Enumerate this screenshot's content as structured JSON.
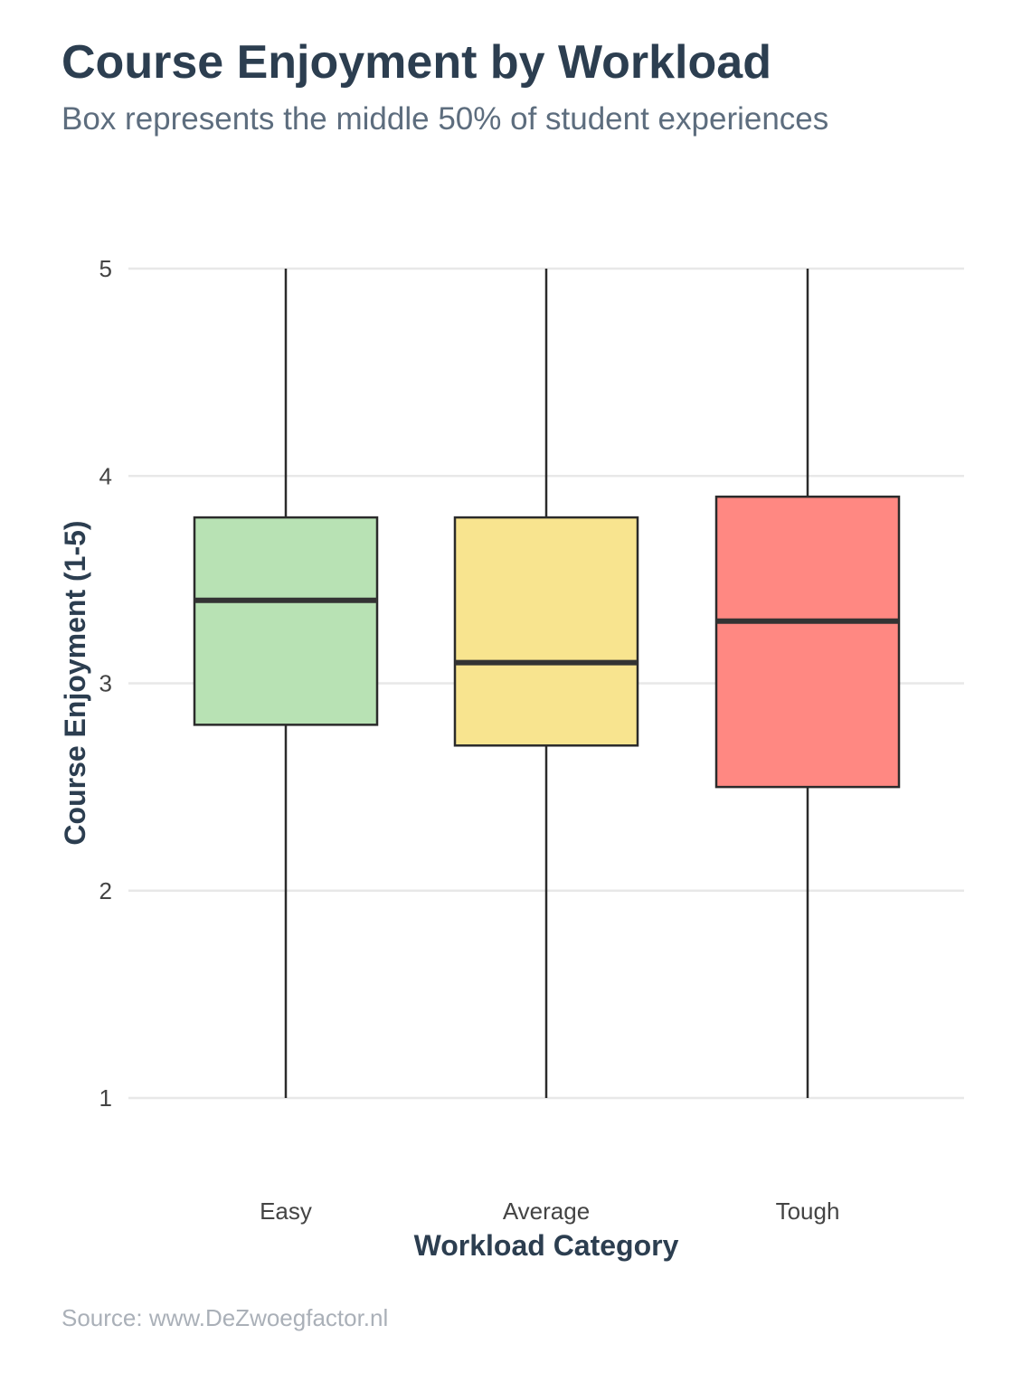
{
  "title": "Course Enjoyment by Workload",
  "subtitle": "Box represents the middle 50% of student experiences",
  "source": "Source: www.DeZwoegfactor.nl",
  "chart_data": {
    "type": "box",
    "xlabel": "Workload Category",
    "ylabel": "Course Enjoyment (1-5)",
    "ylim": [
      1,
      5
    ],
    "yticks": [
      "1",
      "2",
      "3",
      "4",
      "5"
    ],
    "grid": "horizontal",
    "categories": [
      "Easy",
      "Average",
      "Tough"
    ],
    "boxes": [
      {
        "category": "Easy",
        "min": 1,
        "q1": 2.8,
        "median": 3.4,
        "q3": 3.8,
        "max": 5,
        "color": "#b8e2b4"
      },
      {
        "category": "Average",
        "min": 1,
        "q1": 2.7,
        "median": 3.1,
        "q3": 3.8,
        "max": 5,
        "color": "#f8e48f"
      },
      {
        "category": "Tough",
        "min": 1,
        "q1": 2.5,
        "median": 3.3,
        "q3": 3.9,
        "max": 5,
        "color": "#ff8882"
      }
    ]
  }
}
